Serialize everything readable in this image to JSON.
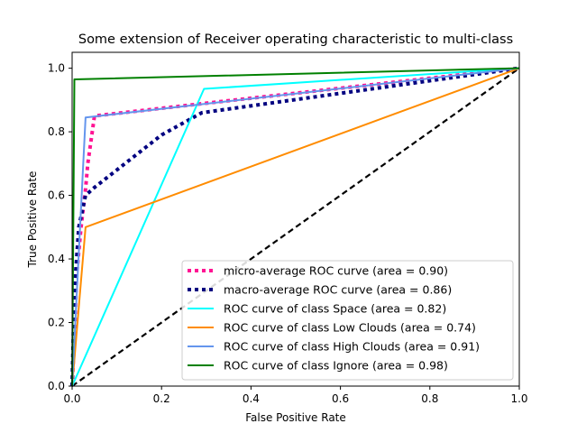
{
  "chart_data": {
    "type": "line",
    "title": "Some extension of Receiver operating characteristic to multi-class",
    "xlabel": "False Positive Rate",
    "ylabel": "True Positive Rate",
    "xlim": [
      0.0,
      1.0
    ],
    "ylim": [
      0.0,
      1.05
    ],
    "xticks": [
      0.0,
      0.2,
      0.4,
      0.6,
      0.8,
      1.0
    ],
    "yticks": [
      0.0,
      0.2,
      0.4,
      0.6,
      0.8,
      1.0
    ],
    "xtick_labels": [
      "0.0",
      "0.2",
      "0.4",
      "0.6",
      "0.8",
      "1.0"
    ],
    "ytick_labels": [
      "0.0",
      "0.2",
      "0.4",
      "0.6",
      "0.8",
      "1.0"
    ],
    "grid": false,
    "legend_position": "lower-right",
    "series": [
      {
        "name": "micro-average ROC curve (area = 0.90)",
        "color": "#ff1493",
        "style": "dotted",
        "x": [
          0.0,
          0.005,
          0.01,
          0.02,
          0.03,
          0.035,
          0.05,
          0.3,
          1.0
        ],
        "y": [
          0.0,
          0.15,
          0.35,
          0.5,
          0.62,
          0.7,
          0.85,
          0.89,
          1.0
        ]
      },
      {
        "name": "macro-average ROC curve (area = 0.86)",
        "color": "#000080",
        "style": "dotted",
        "x": [
          0.0,
          0.005,
          0.015,
          0.03,
          0.05,
          0.1,
          0.2,
          0.29,
          1.0
        ],
        "y": [
          0.0,
          0.3,
          0.5,
          0.6,
          0.625,
          0.68,
          0.79,
          0.86,
          1.0
        ]
      },
      {
        "name": "ROC curve of class Space (area = 0.82)",
        "color": "#00ffff",
        "style": "solid",
        "x": [
          0.0,
          0.295,
          1.0
        ],
        "y": [
          0.0,
          0.935,
          1.0
        ]
      },
      {
        "name": "ROC curve of class Low Clouds (area = 0.74)",
        "color": "#ff8c00",
        "style": "solid",
        "x": [
          0.0,
          0.03,
          1.0
        ],
        "y": [
          0.0,
          0.5,
          1.0
        ]
      },
      {
        "name": "ROC curve of class High Clouds (area = 0.91)",
        "color": "#6495ed",
        "style": "solid",
        "x": [
          0.0,
          0.03,
          1.0
        ],
        "y": [
          0.0,
          0.845,
          1.0
        ]
      },
      {
        "name": "ROC curve of class Ignore (area = 0.98)",
        "color": "#008000",
        "style": "solid",
        "x": [
          0.0,
          0.005,
          1.0
        ],
        "y": [
          0.0,
          0.965,
          1.0
        ]
      }
    ],
    "reference_line": {
      "x": [
        0.0,
        1.0
      ],
      "y": [
        0.0,
        1.0
      ],
      "color": "#000000",
      "style": "dashed"
    }
  }
}
